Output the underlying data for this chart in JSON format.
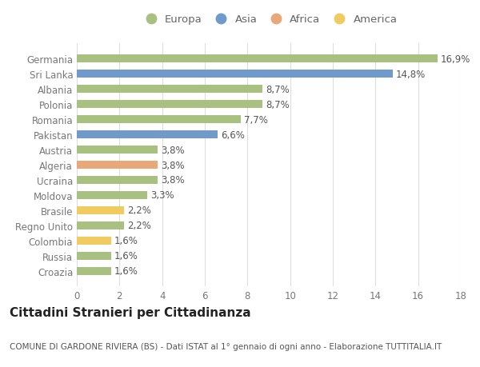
{
  "categories": [
    "Germania",
    "Sri Lanka",
    "Albania",
    "Polonia",
    "Romania",
    "Pakistan",
    "Austria",
    "Algeria",
    "Ucraina",
    "Moldova",
    "Brasile",
    "Regno Unito",
    "Colombia",
    "Russia",
    "Croazia"
  ],
  "values": [
    16.9,
    14.8,
    8.7,
    8.7,
    7.7,
    6.6,
    3.8,
    3.8,
    3.8,
    3.3,
    2.2,
    2.2,
    1.6,
    1.6,
    1.6
  ],
  "labels": [
    "16,9%",
    "14,8%",
    "8,7%",
    "8,7%",
    "7,7%",
    "6,6%",
    "3,8%",
    "3,8%",
    "3,8%",
    "3,3%",
    "2,2%",
    "2,2%",
    "1,6%",
    "1,6%",
    "1,6%"
  ],
  "continent": [
    "Europa",
    "Asia",
    "Europa",
    "Europa",
    "Europa",
    "Asia",
    "Europa",
    "Africa",
    "Europa",
    "Europa",
    "America",
    "Europa",
    "America",
    "Europa",
    "Europa"
  ],
  "colors": {
    "Europa": "#a8c080",
    "Asia": "#7099cc",
    "Africa": "#e8a878",
    "America": "#f0cc60"
  },
  "legend_order": [
    "Europa",
    "Asia",
    "Africa",
    "America"
  ],
  "title": "Cittadini Stranieri per Cittadinanza",
  "subtitle": "COMUNE DI GARDONE RIVIERA (BS) - Dati ISTAT al 1° gennaio di ogni anno - Elaborazione TUTTITALIA.IT",
  "xlim": [
    0,
    18
  ],
  "xticks": [
    0,
    2,
    4,
    6,
    8,
    10,
    12,
    14,
    16,
    18
  ],
  "bg_color": "#ffffff",
  "grid_color": "#dddddd",
  "bar_height": 0.55,
  "label_fontsize": 8.5,
  "title_fontsize": 11,
  "subtitle_fontsize": 7.5,
  "tick_fontsize": 8.5,
  "legend_fontsize": 9.5
}
